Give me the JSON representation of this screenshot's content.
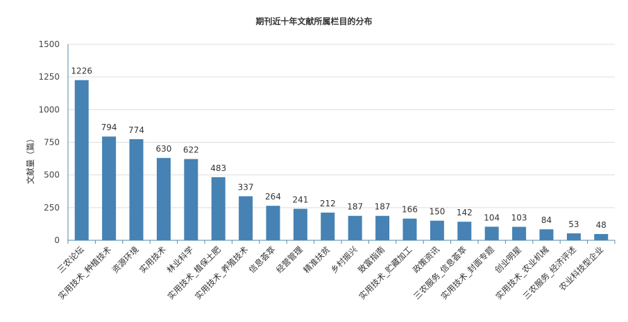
{
  "chart_data": {
    "type": "bar",
    "title": "期刊近十年文献所属栏目的分布",
    "xlabel": "",
    "ylabel": "文献量（篇）",
    "ylim": [
      0,
      1500
    ],
    "yticks": [
      0,
      250,
      500,
      750,
      1000,
      1250,
      1500
    ],
    "grid": true,
    "bar_color": "#4682b4",
    "categories": [
      "三农论坛",
      "实用技术_种植技术",
      "资源环境",
      "实用技术",
      "林业科学",
      "实用技术_植保土肥",
      "实用技术_养殖技术",
      "信息荟萃",
      "经营管理",
      "精准扶贫",
      "乡村振兴",
      "致富指南",
      "实用技术_贮藏加工",
      "政策资讯",
      "三农服务_信息荟萃",
      "实用技术_封面专题",
      "创业明星",
      "实用技术_农业机械",
      "三农服务_经济评述",
      "农业科技型企业"
    ],
    "values": [
      1226,
      794,
      774,
      630,
      622,
      483,
      337,
      264,
      241,
      212,
      187,
      187,
      166,
      150,
      142,
      104,
      103,
      84,
      53,
      48
    ]
  }
}
